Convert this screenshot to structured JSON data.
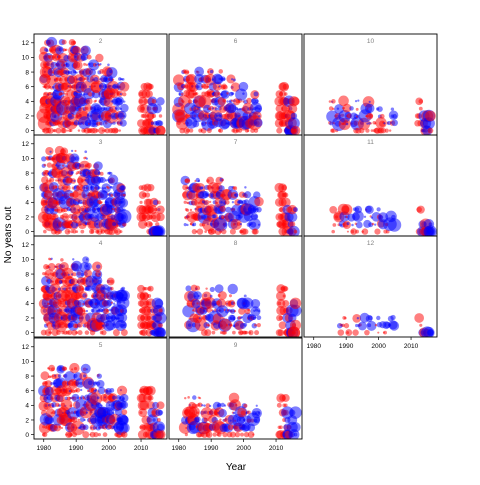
{
  "chart_data": {
    "type": "scatter",
    "xlabel": "Year",
    "ylabel": "No years out",
    "xlim": [
      1977,
      2018
    ],
    "ylim": [
      -0.6,
      13.2
    ],
    "x_ticks": [
      1980,
      1990,
      2000,
      2010
    ],
    "y_ticks": [
      0,
      2,
      4,
      6,
      8,
      10,
      12
    ],
    "grid": false,
    "point_colors": {
      "red": "#ff0000",
      "blue": "#0000ff"
    },
    "point_alpha": 0.5,
    "panels": [
      {
        "label": "2",
        "max_years_out": 12,
        "year_start": 1980,
        "recent_start": 2010,
        "density": 1.0
      },
      {
        "label": "6",
        "max_years_out": 8,
        "year_start": 1980,
        "recent_start": 2011,
        "density": 0.8
      },
      {
        "label": "10",
        "max_years_out": 4,
        "year_start": 1985,
        "recent_start": 2012,
        "density": 0.55
      },
      {
        "label": "3",
        "max_years_out": 11,
        "year_start": 1980,
        "recent_start": 2010,
        "density": 0.95
      },
      {
        "label": "7",
        "max_years_out": 7,
        "year_start": 1982,
        "recent_start": 2011,
        "density": 0.75
      },
      {
        "label": "11",
        "max_years_out": 3,
        "year_start": 1986,
        "recent_start": 2012,
        "density": 0.45
      },
      {
        "label": "4",
        "max_years_out": 10,
        "year_start": 1980,
        "recent_start": 2010,
        "density": 0.9
      },
      {
        "label": "8",
        "max_years_out": 6,
        "year_start": 1983,
        "recent_start": 2011,
        "density": 0.7
      },
      {
        "label": "12",
        "max_years_out": 2,
        "year_start": 1988,
        "recent_start": 2012,
        "density": 0.4
      },
      {
        "label": "5",
        "max_years_out": 9,
        "year_start": 1980,
        "recent_start": 2010,
        "density": 0.85
      },
      {
        "label": "9",
        "max_years_out": 5,
        "year_start": 1982,
        "recent_start": 2011,
        "density": 0.65
      }
    ]
  }
}
